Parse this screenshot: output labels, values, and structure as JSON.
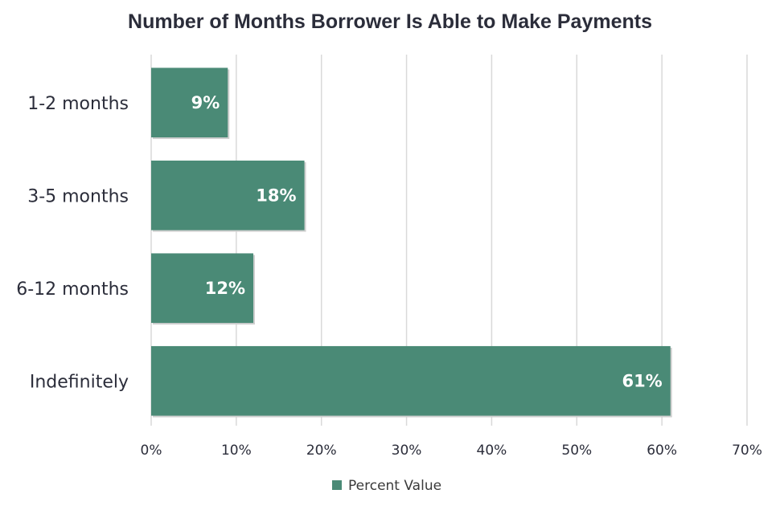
{
  "chart_data": {
    "type": "bar",
    "orientation": "horizontal",
    "title": "Number of Months Borrower Is Able to Make Payments",
    "categories": [
      "1-2 months",
      "3-5 months",
      "6-12 months",
      "Indefinitely"
    ],
    "series": [
      {
        "name": "Percent Value",
        "values": [
          9,
          18,
          12,
          61
        ],
        "data_labels": [
          "9%",
          "18%",
          "12%",
          "61%"
        ],
        "color": "#4a8a76"
      }
    ],
    "xlim": [
      0,
      70
    ],
    "x_ticks": [
      0,
      10,
      20,
      30,
      40,
      50,
      60,
      70
    ],
    "x_tick_labels": [
      "0%",
      "10%",
      "20%",
      "30%",
      "40%",
      "50%",
      "60%",
      "70%"
    ],
    "grid": "vertical",
    "legend_position": "bottom"
  }
}
